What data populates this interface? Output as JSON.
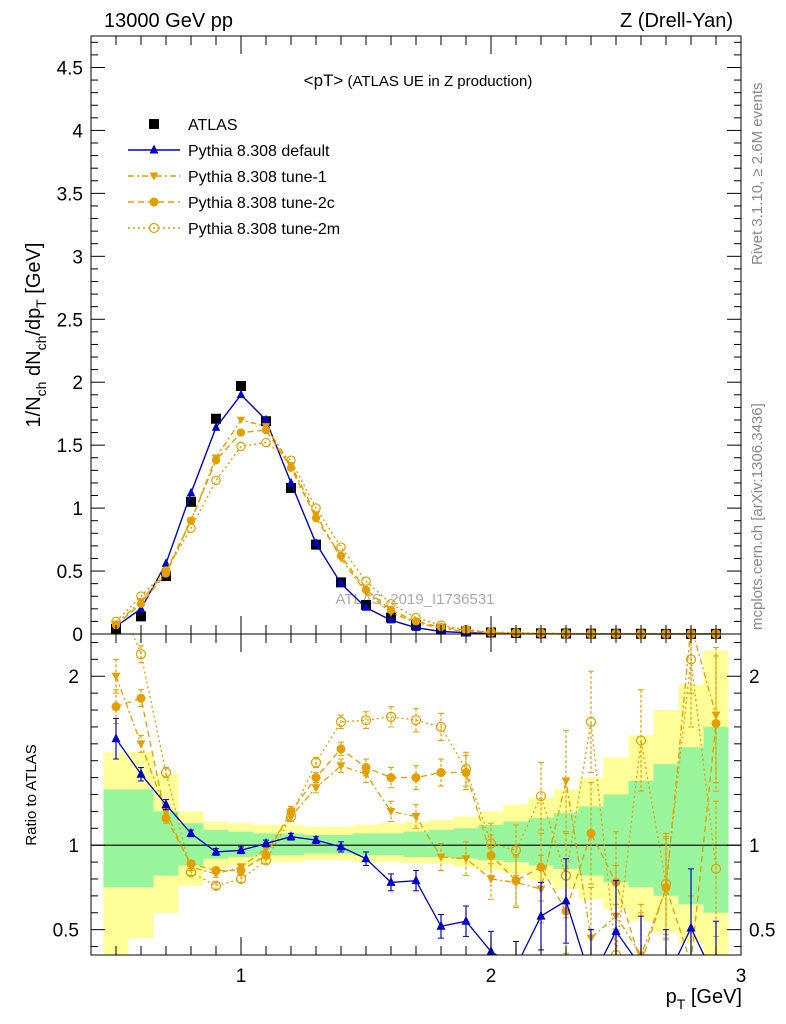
{
  "header": {
    "left": "13000 GeV pp",
    "right": "Z (Drell-Yan)"
  },
  "side": {
    "rivet": "Rivet 3.1.10, ≥ 2.6M events",
    "mcplots": "mcplots.cern.ch [arXiv:1306.3436]"
  },
  "colors": {
    "data": "#000000",
    "default": "#0000cc",
    "tunes": "#e39f00",
    "band_inner": "#99f59c",
    "band_outer": "#ffff99"
  },
  "chart_data": [
    {
      "type": "line",
      "panel": "main",
      "title": "<pT>",
      "title_suffix": " (ATLAS UE in Z production)",
      "xlabel": "p_T [GeV]",
      "ylabel": "1/N_ch dN_ch/dp_T [GeV]",
      "xlim": [
        0.4,
        3.0
      ],
      "ylim": [
        0,
        4.75
      ],
      "yticks": [
        "0",
        "0.5",
        "1",
        "1.5",
        "2",
        "2.5",
        "3",
        "3.5",
        "4",
        "4.5"
      ],
      "legend_position": "top-left",
      "watermark": "ATLAS_2019_I1736531",
      "x": [
        0.5,
        0.6,
        0.7,
        0.8,
        0.9,
        1.0,
        1.1,
        1.2,
        1.3,
        1.4,
        1.5,
        1.6,
        1.7,
        1.8,
        1.9,
        2.0,
        2.1,
        2.2,
        2.3,
        2.4,
        2.5,
        2.6,
        2.7,
        2.8,
        2.9
      ],
      "series": [
        {
          "name": "ATLAS",
          "style": "data",
          "values": [
            0.04,
            0.14,
            0.46,
            1.05,
            1.71,
            1.97,
            1.69,
            1.16,
            0.71,
            0.41,
            0.23,
            0.13,
            0.07,
            0.04,
            0.02,
            0.012,
            0.008,
            0.005,
            0.004,
            0.003,
            0.002,
            0.002,
            0.001,
            0.001,
            0.001
          ]
        },
        {
          "name": "Pythia 8.308 default",
          "style": "default",
          "values": [
            0.06,
            0.2,
            0.56,
            1.12,
            1.64,
            1.9,
            1.7,
            1.2,
            0.72,
            0.4,
            0.21,
            0.11,
            0.05,
            0.02,
            0.01,
            0.005,
            0.002,
            0.002,
            0.001,
            0.001,
            0.0005,
            0.0005,
            0.0005,
            0.0005,
            0.0005
          ]
        },
        {
          "name": "Pythia 8.308 tune-1",
          "style": "tune1",
          "values": [
            0.08,
            0.26,
            0.5,
            0.9,
            1.4,
            1.7,
            1.65,
            1.34,
            0.95,
            0.6,
            0.33,
            0.17,
            0.09,
            0.045,
            0.02,
            0.01,
            0.006,
            0.004,
            0.003,
            0.002,
            0.0015,
            0.001,
            0.001,
            0.001,
            0.001
          ]
        },
        {
          "name": "Pythia 8.308 tune-2c",
          "style": "tune2c",
          "values": [
            0.07,
            0.24,
            0.48,
            0.9,
            1.38,
            1.6,
            1.62,
            1.32,
            0.92,
            0.62,
            0.35,
            0.19,
            0.1,
            0.055,
            0.03,
            0.012,
            0.007,
            0.004,
            0.003,
            0.002,
            0.0015,
            0.001,
            0.001,
            0.001,
            0.001
          ]
        },
        {
          "name": "Pythia 8.308 tune-2m",
          "style": "tune2m",
          "values": [
            0.1,
            0.3,
            0.5,
            0.84,
            1.22,
            1.49,
            1.52,
            1.38,
            1.0,
            0.69,
            0.42,
            0.24,
            0.13,
            0.07,
            0.035,
            0.015,
            0.01,
            0.006,
            0.004,
            0.003,
            0.002,
            0.0015,
            0.001,
            0.001,
            0.001
          ]
        }
      ]
    },
    {
      "type": "line",
      "panel": "ratio",
      "ylabel": "Ratio to ATLAS",
      "xlabel": "p_T [GeV]",
      "xlim": [
        0.4,
        3.0
      ],
      "ylim": [
        0.35,
        2.25
      ],
      "ytick_values": [
        0.5,
        1,
        2
      ],
      "ytick_labels": [
        "0.5",
        "1",
        "2"
      ],
      "xtick_values": [
        1,
        2,
        3
      ],
      "xtick_labels": [
        "1",
        "2",
        "3"
      ],
      "bins": [
        0.45,
        0.55,
        0.65,
        0.75,
        0.85,
        0.95,
        1.05,
        1.15,
        1.25,
        1.35,
        1.45,
        1.55,
        1.65,
        1.75,
        1.85,
        1.95,
        2.05,
        2.15,
        2.25,
        2.35,
        2.45,
        2.55,
        2.65,
        2.75,
        2.85,
        2.95
      ],
      "band_inner": {
        "lo": [
          0.75,
          0.75,
          0.82,
          0.88,
          0.92,
          0.93,
          0.94,
          0.94,
          0.95,
          0.95,
          0.94,
          0.94,
          0.93,
          0.93,
          0.92,
          0.91,
          0.9,
          0.88,
          0.86,
          0.82,
          0.78,
          0.75,
          0.7,
          0.65,
          0.6
        ],
        "hi": [
          1.33,
          1.33,
          1.2,
          1.13,
          1.09,
          1.08,
          1.07,
          1.07,
          1.06,
          1.06,
          1.07,
          1.07,
          1.08,
          1.09,
          1.1,
          1.12,
          1.14,
          1.16,
          1.19,
          1.23,
          1.3,
          1.38,
          1.48,
          1.58,
          1.7
        ]
      },
      "band_outer": {
        "lo": [
          0.35,
          0.45,
          0.6,
          0.76,
          0.86,
          0.88,
          0.9,
          0.9,
          0.91,
          0.91,
          0.9,
          0.9,
          0.89,
          0.89,
          0.87,
          0.85,
          0.83,
          0.79,
          0.74,
          0.68,
          0.62,
          0.55,
          0.48,
          0.42,
          0.35
        ],
        "hi": [
          1.55,
          1.55,
          1.42,
          1.2,
          1.14,
          1.13,
          1.12,
          1.12,
          1.11,
          1.11,
          1.12,
          1.13,
          1.14,
          1.15,
          1.17,
          1.2,
          1.24,
          1.28,
          1.33,
          1.4,
          1.52,
          1.65,
          1.8,
          1.95,
          2.15
        ]
      },
      "x": [
        0.5,
        0.6,
        0.7,
        0.8,
        0.9,
        1.0,
        1.1,
        1.2,
        1.3,
        1.4,
        1.5,
        1.6,
        1.7,
        1.8,
        1.9,
        2.0,
        2.1,
        2.2,
        2.3,
        2.4,
        2.5,
        2.6,
        2.7,
        2.8,
        2.9
      ],
      "series": [
        {
          "name": "Pythia 8.308 default",
          "style": "default",
          "values": [
            1.63,
            1.42,
            1.24,
            1.07,
            0.96,
            0.97,
            1.01,
            1.05,
            1.03,
            0.99,
            0.92,
            0.78,
            0.79,
            0.52,
            0.55,
            0.37,
            0.28,
            0.58,
            0.67,
            0.2,
            0.49,
            0.28,
            0.2,
            0.51,
            0.2
          ],
          "err": [
            0.12,
            0.04,
            0.03,
            0.02,
            0.02,
            0.02,
            0.02,
            0.02,
            0.02,
            0.03,
            0.04,
            0.05,
            0.06,
            0.07,
            0.09,
            0.12,
            0.15,
            0.2,
            0.25,
            0.3,
            0.3,
            0.3,
            0.3,
            0.35,
            0.35
          ]
        },
        {
          "name": "Pythia 8.308 tune-1",
          "style": "tune1",
          "values": [
            2.0,
            1.6,
            1.2,
            0.87,
            0.83,
            0.87,
            0.98,
            1.17,
            1.34,
            1.47,
            1.42,
            1.2,
            1.17,
            0.93,
            0.92,
            0.8,
            0.78,
            0.74,
            1.38,
            0.45,
            0.58,
            0.35,
            0.74,
            2.3,
            1.77
          ],
          "err": [
            0.1,
            0.05,
            0.03,
            0.02,
            0.02,
            0.02,
            0.02,
            0.03,
            0.03,
            0.04,
            0.05,
            0.06,
            0.07,
            0.08,
            0.1,
            0.12,
            0.15,
            0.2,
            0.3,
            0.3,
            0.3,
            0.3,
            0.3,
            0.4,
            0.4
          ]
        },
        {
          "name": "Pythia 8.308 tune-2c",
          "style": "tune2c",
          "values": [
            1.82,
            1.87,
            1.16,
            0.89,
            0.85,
            0.85,
            0.94,
            1.2,
            1.4,
            1.57,
            1.46,
            1.4,
            1.4,
            1.43,
            1.43,
            0.94,
            0.79,
            0.87,
            0.61,
            1.07,
            0.78,
            0.3,
            0.75,
            0.3,
            1.72
          ],
          "err": [
            0.1,
            0.05,
            0.03,
            0.02,
            0.02,
            0.02,
            0.02,
            0.03,
            0.03,
            0.04,
            0.05,
            0.06,
            0.07,
            0.08,
            0.1,
            0.12,
            0.15,
            0.2,
            0.25,
            0.3,
            0.3,
            0.3,
            0.3,
            0.4,
            0.4
          ]
        },
        {
          "name": "Pythia 8.308 tune-2m",
          "style": "tune2m",
          "values": [
            2.5,
            2.13,
            1.43,
            0.84,
            0.76,
            0.8,
            0.91,
            1.17,
            1.49,
            1.73,
            1.74,
            1.76,
            1.74,
            1.7,
            1.45,
            1.01,
            0.97,
            1.29,
            0.82,
            1.73,
            0.35,
            1.62,
            0.77,
            2.1,
            0.86
          ],
          "err": [
            0.1,
            0.05,
            0.03,
            0.02,
            0.02,
            0.02,
            0.02,
            0.03,
            0.03,
            0.04,
            0.05,
            0.06,
            0.07,
            0.08,
            0.1,
            0.12,
            0.15,
            0.2,
            0.25,
            0.3,
            0.3,
            0.3,
            0.3,
            0.4,
            0.4
          ]
        }
      ]
    }
  ]
}
